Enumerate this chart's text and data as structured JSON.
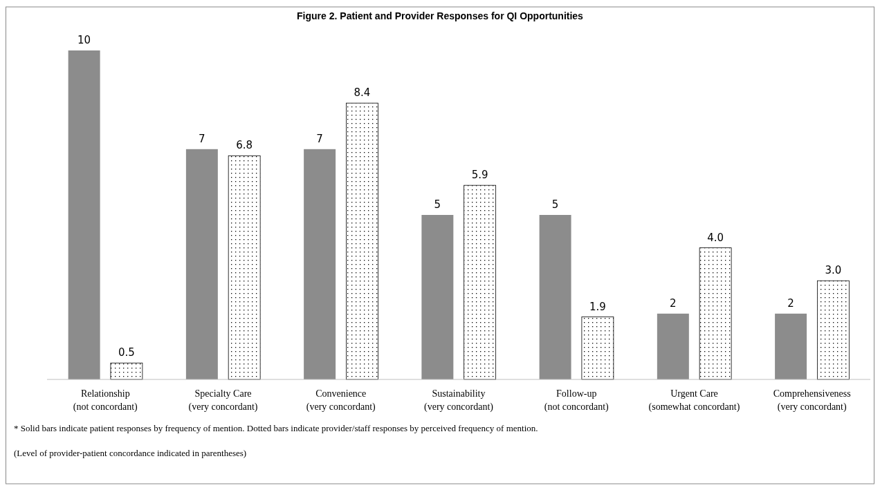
{
  "chart_data": {
    "type": "bar",
    "title": "Figure 2. Patient and Provider Responses for QI Opportunities",
    "categories": [
      "Relationship (not concordant)",
      "Specialty Care (very concordant)",
      "Convenience (very concordant)",
      "Sustainability (very concordant)",
      "Follow-up (not concordant)",
      "Urgent Care (somewhat concordant)",
      "Comprehensiveness (very concordant)"
    ],
    "series": [
      {
        "color": "#8c8c8c",
        "values": [
          10,
          7,
          7,
          5,
          5,
          2,
          2
        ],
        "value_labels": [
          "10",
          "7",
          "7",
          "5",
          "5",
          "2",
          "2"
        ]
      },
      {
        "color": "#ffffff",
        "values": [
          0.5,
          6.8,
          8.4,
          5.9,
          1.9,
          4.0,
          3.0
        ],
        "value_labels": [
          "0.5",
          "6.8",
          "8.4",
          "5.9",
          "1.9",
          "4.0",
          "3.0"
        ]
      }
    ],
    "annotations": [
      "* Solid bars indicate patient responses by frequency of mention. Dotted bars indicate provider/staff responses by perceived frequency of mention.",
      "(Level of provider-patient concordance indicated in parentheses)"
    ]
  }
}
